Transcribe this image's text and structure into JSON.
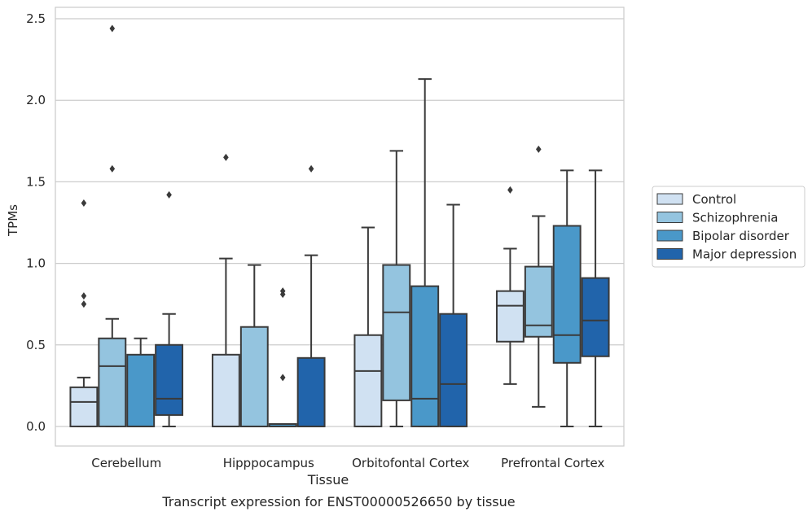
{
  "chart_data": {
    "type": "boxplot",
    "title": "",
    "caption": "Transcript expression for ENST00000526650 by tissue",
    "xlabel": "Tissue",
    "ylabel": "TPMs",
    "ylim": [
      -0.12,
      2.57
    ],
    "yticks": [
      "0.0",
      "0.5",
      "1.0",
      "1.5",
      "2.0",
      "2.5"
    ],
    "categories": [
      "Cerebellum",
      "Hipppocampus",
      "Orbitofontal Cortex",
      "Prefrontal Cortex"
    ],
    "grid": "horizontal",
    "legend_position": "right",
    "series": [
      {
        "name": "Control",
        "color": "#d0e1f2",
        "boxes": [
          {
            "whislo": 0.0,
            "q1": 0.0,
            "med": 0.15,
            "q3": 0.24,
            "whishi": 0.3,
            "fliers": [
              0.75,
              0.8,
              1.37
            ]
          },
          {
            "whislo": 0.0,
            "q1": 0.0,
            "med": 0.0,
            "q3": 0.44,
            "whishi": 1.03,
            "fliers": [
              1.65
            ]
          },
          {
            "whislo": 0.0,
            "q1": 0.0,
            "med": 0.34,
            "q3": 0.56,
            "whishi": 1.22,
            "fliers": []
          },
          {
            "whislo": 0.26,
            "q1": 0.52,
            "med": 0.74,
            "q3": 0.83,
            "whishi": 1.09,
            "fliers": [
              1.45
            ]
          }
        ]
      },
      {
        "name": "Schizophrenia",
        "color": "#94c4df",
        "boxes": [
          {
            "whislo": 0.0,
            "q1": 0.0,
            "med": 0.37,
            "q3": 0.54,
            "whishi": 0.66,
            "fliers": [
              1.58,
              2.44
            ]
          },
          {
            "whislo": 0.0,
            "q1": 0.0,
            "med": 0.0,
            "q3": 0.61,
            "whishi": 0.99,
            "fliers": []
          },
          {
            "whislo": 0.0,
            "q1": 0.16,
            "med": 0.7,
            "q3": 0.99,
            "whishi": 1.69,
            "fliers": []
          },
          {
            "whislo": 0.12,
            "q1": 0.55,
            "med": 0.62,
            "q3": 0.98,
            "whishi": 1.29,
            "fliers": [
              1.7
            ]
          }
        ]
      },
      {
        "name": "Bipolar disorder",
        "color": "#4a98c9",
        "boxes": [
          {
            "whislo": 0.0,
            "q1": 0.0,
            "med": 0.0,
            "q3": 0.44,
            "whishi": 0.54,
            "fliers": []
          },
          {
            "whislo": 0.0,
            "q1": 0.0,
            "med": 0.0,
            "q3": 0.015,
            "whishi": 0.015,
            "fliers": [
              0.3,
              0.81,
              0.83
            ]
          },
          {
            "whislo": 0.0,
            "q1": 0.0,
            "med": 0.17,
            "q3": 0.86,
            "whishi": 2.13,
            "fliers": []
          },
          {
            "whislo": 0.0,
            "q1": 0.39,
            "med": 0.56,
            "q3": 1.23,
            "whishi": 1.57,
            "fliers": []
          }
        ]
      },
      {
        "name": "Major depression",
        "color": "#2164ab",
        "boxes": [
          {
            "whislo": 0.0,
            "q1": 0.07,
            "med": 0.17,
            "q3": 0.5,
            "whishi": 0.69,
            "fliers": [
              1.42
            ]
          },
          {
            "whislo": 0.0,
            "q1": 0.0,
            "med": 0.0,
            "q3": 0.42,
            "whishi": 1.05,
            "fliers": [
              1.58
            ]
          },
          {
            "whislo": 0.0,
            "q1": 0.0,
            "med": 0.26,
            "q3": 0.69,
            "whishi": 1.36,
            "fliers": []
          },
          {
            "whislo": 0.0,
            "q1": 0.43,
            "med": 0.65,
            "q3": 0.91,
            "whishi": 1.57,
            "fliers": []
          }
        ]
      }
    ]
  }
}
